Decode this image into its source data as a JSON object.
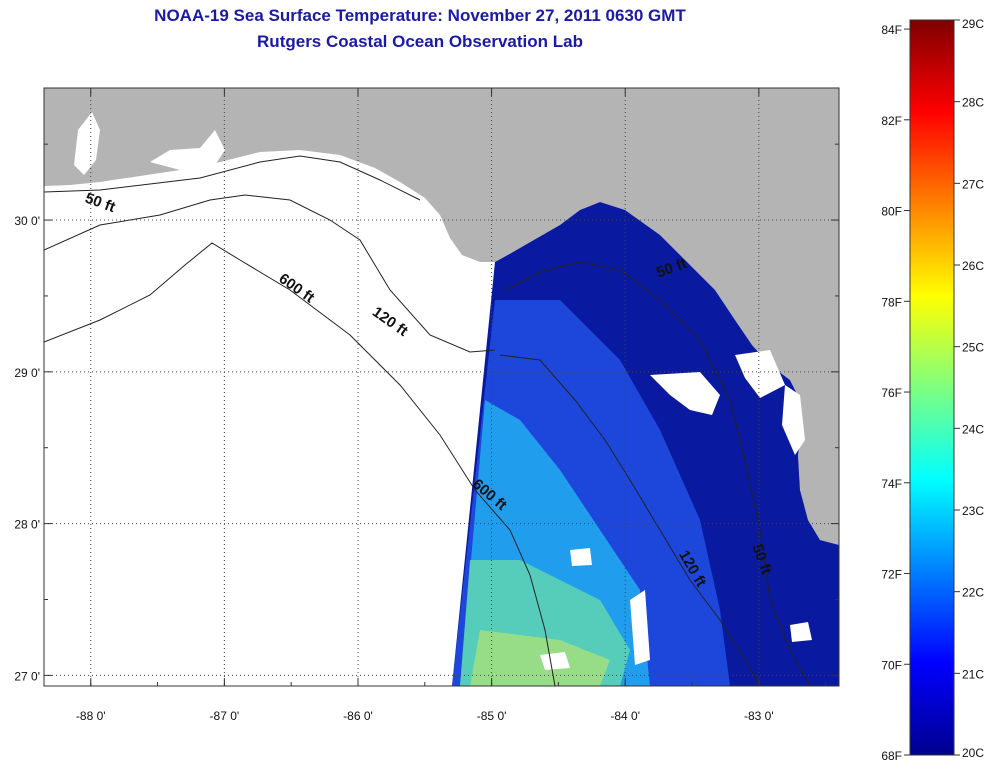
{
  "title": {
    "line1": "NOAA-19 Sea Surface Temperature:  November 27, 2011 0630 GMT",
    "line2": "Rutgers Coastal Ocean Observation Lab"
  },
  "map": {
    "lon_range": [
      -88.35,
      -82.4
    ],
    "lat_range": [
      26.93,
      30.87
    ],
    "lon_ticks": [
      -88,
      -87,
      -86,
      -85,
      -84,
      -83
    ],
    "lon_tick_labels": [
      "-88 0'",
      "-87 0'",
      "-86 0'",
      "-85 0'",
      "-84 0'",
      "-83 0'"
    ],
    "lat_ticks": [
      30,
      29,
      28,
      27
    ],
    "lat_tick_labels": [
      "30 0'",
      "29 0'",
      "28 0'",
      "27 0'"
    ],
    "grid": "dotted",
    "land_color": "#b4b4b4",
    "no_data_color": "#ffffff",
    "contours": [
      {
        "label": "50 ft"
      },
      {
        "label": "120 ft"
      },
      {
        "label": "600 ft"
      }
    ],
    "contour_labels": [
      {
        "text": "50 ft",
        "lon": -88.05,
        "lat": 30.12
      },
      {
        "text": "600 ft",
        "lon": -86.6,
        "lat": 29.6
      },
      {
        "text": "120 ft",
        "lon": -85.9,
        "lat": 29.38
      },
      {
        "text": "50 ft",
        "lon": -83.75,
        "lat": 29.62
      },
      {
        "text": "600 ft",
        "lon": -85.15,
        "lat": 28.25
      },
      {
        "text": "120 ft",
        "lon": -83.6,
        "lat": 27.8
      },
      {
        "text": "50 ft",
        "lon": -83.05,
        "lat": 27.85
      }
    ]
  },
  "colorbar": {
    "min_c": 20,
    "max_c": 29,
    "celsius_labels": [
      "29C",
      "28C",
      "27C",
      "26C",
      "25C",
      "24C",
      "23C",
      "22C",
      "21C",
      "20C"
    ],
    "fahrenheit_labels": [
      "84F",
      "82F",
      "80F",
      "78F",
      "76F",
      "74F",
      "72F",
      "70F",
      "68F"
    ],
    "fahrenheit_values": [
      84,
      82,
      80,
      78,
      76,
      74,
      72,
      70,
      68
    ],
    "colormap": "jet"
  }
}
